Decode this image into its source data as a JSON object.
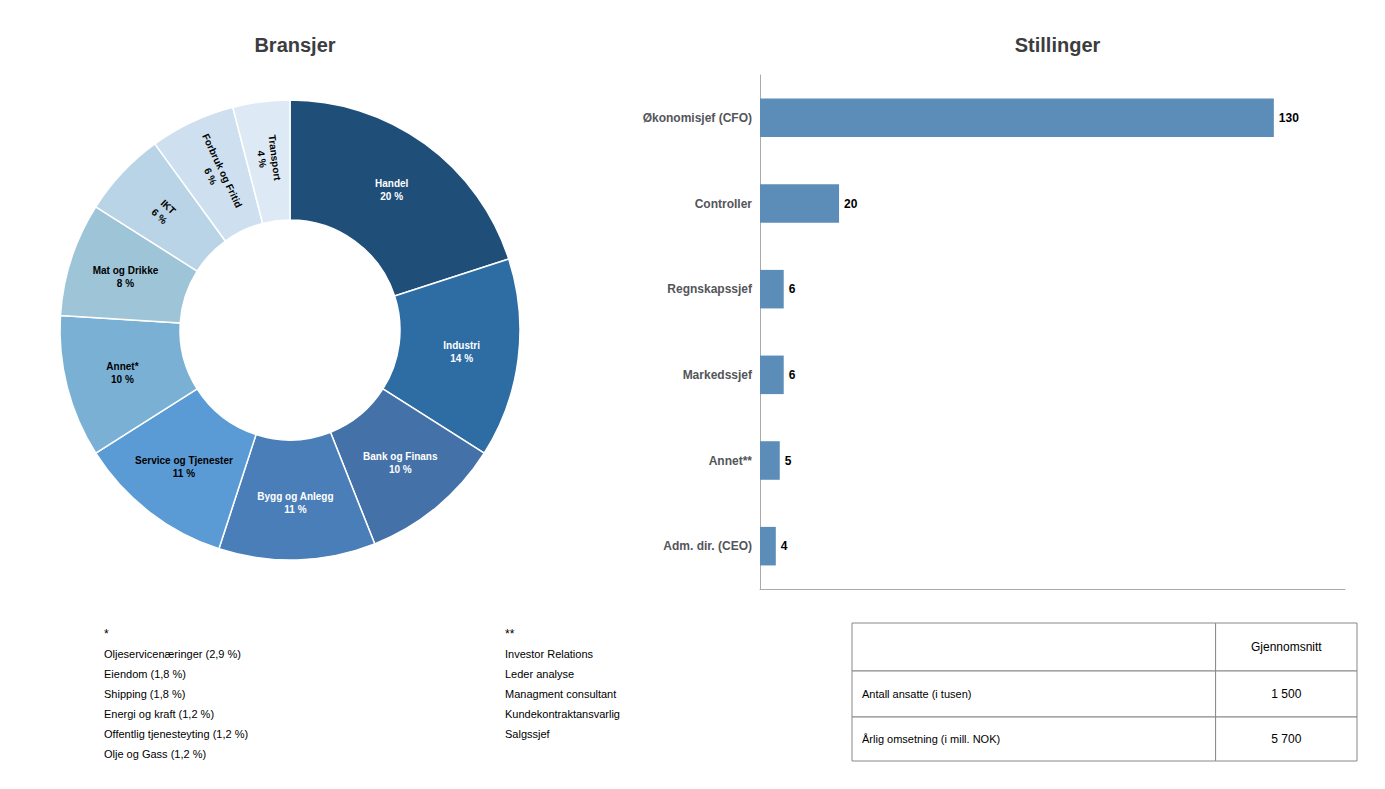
{
  "chart_data": [
    {
      "type": "pie",
      "title": "Bransjer",
      "categories": [
        "Handel",
        "Industri",
        "Bank og Finans",
        "Bygg og Anlegg",
        "Service og Tjenester",
        "Annet*",
        "Mat og Drikke",
        "IKT",
        "Forbruk og Fritid",
        "Transport"
      ],
      "values": [
        20,
        14,
        10,
        11,
        11,
        10,
        8,
        6,
        6,
        4
      ],
      "value_labels": [
        "20 %",
        "14 %",
        "10 %",
        "11 %",
        "11 %",
        "10 %",
        "8 %",
        "6 %",
        "6 %",
        "4 %"
      ],
      "colors": [
        "#1f4e79",
        "#2e6da4",
        "#4472a8",
        "#4a7eb8",
        "#5b9bd5",
        "#7ab0d4",
        "#9ec4d8",
        "#b8d4e6",
        "#cee0ef",
        "#ddeaf5"
      ],
      "data_labels": true,
      "annotations": [
        "*",
        "Oljeservicenæringer (2,9 %)",
        "Eiendom (1,8 %)",
        "Shipping (1,8 %)",
        "Energi og kraft (1,2 %)",
        "Offentlig tjenesteyting (1,2 %)",
        "Olje og Gass (1,2 %)"
      ]
    },
    {
      "type": "bar",
      "title": "Stillinger",
      "orientation": "horizontal",
      "categories": [
        "Økonomisjef (CFO)",
        "Controller",
        "Regnskapssjef",
        "Markedssjef",
        "Annet**",
        "Adm. dir. (CEO)"
      ],
      "values": [
        130,
        20,
        6,
        6,
        5,
        4
      ],
      "color": "#5b8db8",
      "xlim": [
        0,
        148
      ],
      "grid": false,
      "tick_labels": "y",
      "data_labels": true,
      "annotations": [
        "**",
        "Investor Relations",
        "Leder analyse",
        "Managment consultant",
        "Kundekontraktansvarlig",
        "Salgssjef"
      ]
    },
    {
      "type": "table",
      "header": "Gjennomsnitt",
      "rows": [
        [
          "Antall ansatte (i tusen)",
          "1 500"
        ],
        [
          "Årlig omsetning (i mill. NOK)",
          "5 700"
        ]
      ]
    }
  ]
}
